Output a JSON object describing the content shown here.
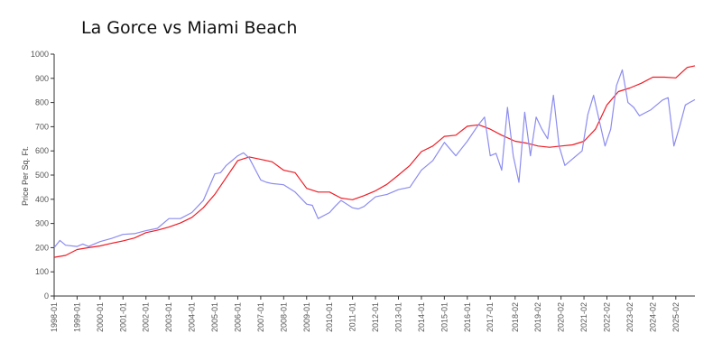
{
  "chart_data": {
    "type": "line",
    "title": "La Gorce vs Miami Beach",
    "ylabel": "Price Per Sq. Ft.",
    "xlabel": "",
    "ylim": [
      0,
      1000
    ],
    "yticks": [
      0,
      100,
      200,
      300,
      400,
      500,
      600,
      700,
      800,
      900,
      1000
    ],
    "xlim": [
      "1998-01",
      "2025-12"
    ],
    "xtick_labels": [
      "1998-01",
      "1999-01",
      "2000-01",
      "2001-01",
      "2002-01",
      "2003-01",
      "2004-01",
      "2005-01",
      "2006-01",
      "2007-01",
      "2008-01",
      "2009-01",
      "2010-01",
      "2011-01",
      "2012-01",
      "2013-01",
      "2014-01",
      "2015-01",
      "2016-01",
      "2017-01",
      "2018-02",
      "2019-02",
      "2020-02",
      "2021-02",
      "2022-02",
      "2023-02",
      "2024-02",
      "2025-02"
    ],
    "grid": false,
    "legend": "none",
    "series": [
      {
        "color": "#ee1c25",
        "points": [
          [
            "1998-01",
            160
          ],
          [
            "1998-07",
            168
          ],
          [
            "1999-01",
            192
          ],
          [
            "1999-07",
            200
          ],
          [
            "2000-01",
            207
          ],
          [
            "2000-07",
            218
          ],
          [
            "2001-01",
            228
          ],
          [
            "2001-07",
            240
          ],
          [
            "2002-01",
            262
          ],
          [
            "2002-07",
            272
          ],
          [
            "2003-01",
            285
          ],
          [
            "2003-07",
            302
          ],
          [
            "2004-01",
            325
          ],
          [
            "2004-07",
            365
          ],
          [
            "2005-01",
            420
          ],
          [
            "2005-07",
            490
          ],
          [
            "2006-01",
            560
          ],
          [
            "2006-07",
            575
          ],
          [
            "2007-01",
            565
          ],
          [
            "2007-07",
            555
          ],
          [
            "2008-01",
            520
          ],
          [
            "2008-07",
            510
          ],
          [
            "2009-01",
            445
          ],
          [
            "2009-07",
            430
          ],
          [
            "2010-01",
            430
          ],
          [
            "2010-07",
            405
          ],
          [
            "2011-01",
            398
          ],
          [
            "2011-07",
            415
          ],
          [
            "2012-01",
            435
          ],
          [
            "2012-07",
            462
          ],
          [
            "2013-01",
            500
          ],
          [
            "2013-07",
            540
          ],
          [
            "2014-01",
            597
          ],
          [
            "2014-07",
            620
          ],
          [
            "2015-01",
            660
          ],
          [
            "2015-07",
            665
          ],
          [
            "2016-01",
            702
          ],
          [
            "2016-07",
            708
          ],
          [
            "2017-01",
            690
          ],
          [
            "2017-07",
            665
          ],
          [
            "2018-02",
            640
          ],
          [
            "2018-08",
            632
          ],
          [
            "2019-02",
            620
          ],
          [
            "2019-08",
            615
          ],
          [
            "2020-02",
            620
          ],
          [
            "2020-08",
            625
          ],
          [
            "2021-02",
            640
          ],
          [
            "2021-08",
            690
          ],
          [
            "2022-02",
            790
          ],
          [
            "2022-08",
            845
          ],
          [
            "2023-02",
            860
          ],
          [
            "2023-08",
            880
          ],
          [
            "2024-02",
            905
          ],
          [
            "2024-08",
            905
          ],
          [
            "2025-02",
            902
          ],
          [
            "2025-08",
            945
          ],
          [
            "2025-12",
            952
          ]
        ]
      },
      {
        "color": "#8c8cf0",
        "points": [
          [
            "1998-01",
            200
          ],
          [
            "1998-04",
            230
          ],
          [
            "1998-07",
            210
          ],
          [
            "1999-01",
            205
          ],
          [
            "1999-04",
            215
          ],
          [
            "1999-07",
            205
          ],
          [
            "2000-01",
            225
          ],
          [
            "2000-07",
            238
          ],
          [
            "2001-01",
            255
          ],
          [
            "2001-07",
            258
          ],
          [
            "2002-01",
            270
          ],
          [
            "2002-07",
            280
          ],
          [
            "2003-01",
            320
          ],
          [
            "2003-07",
            320
          ],
          [
            "2004-01",
            345
          ],
          [
            "2004-07",
            395
          ],
          [
            "2005-01",
            505
          ],
          [
            "2005-04",
            510
          ],
          [
            "2005-07",
            540
          ],
          [
            "2006-01",
            580
          ],
          [
            "2006-04",
            592
          ],
          [
            "2006-07",
            570
          ],
          [
            "2007-01",
            480
          ],
          [
            "2007-04",
            470
          ],
          [
            "2007-07",
            465
          ],
          [
            "2008-01",
            460
          ],
          [
            "2008-07",
            430
          ],
          [
            "2009-01",
            380
          ],
          [
            "2009-04",
            375
          ],
          [
            "2009-07",
            320
          ],
          [
            "2010-01",
            345
          ],
          [
            "2010-04",
            372
          ],
          [
            "2010-07",
            395
          ],
          [
            "2011-01",
            365
          ],
          [
            "2011-04",
            360
          ],
          [
            "2011-07",
            370
          ],
          [
            "2012-01",
            410
          ],
          [
            "2012-07",
            420
          ],
          [
            "2013-01",
            440
          ],
          [
            "2013-07",
            450
          ],
          [
            "2014-01",
            520
          ],
          [
            "2014-07",
            560
          ],
          [
            "2015-01",
            635
          ],
          [
            "2015-07",
            580
          ],
          [
            "2016-01",
            640
          ],
          [
            "2016-07",
            710
          ],
          [
            "2016-10",
            740
          ],
          [
            "2017-01",
            580
          ],
          [
            "2017-04",
            590
          ],
          [
            "2017-07",
            520
          ],
          [
            "2017-10",
            780
          ],
          [
            "2018-01",
            580
          ],
          [
            "2018-04",
            470
          ],
          [
            "2018-07",
            760
          ],
          [
            "2018-10",
            580
          ],
          [
            "2019-01",
            740
          ],
          [
            "2019-04",
            690
          ],
          [
            "2019-07",
            650
          ],
          [
            "2019-10",
            830
          ],
          [
            "2020-01",
            620
          ],
          [
            "2020-04",
            540
          ],
          [
            "2020-07",
            560
          ],
          [
            "2021-01",
            600
          ],
          [
            "2021-04",
            750
          ],
          [
            "2021-07",
            830
          ],
          [
            "2022-01",
            620
          ],
          [
            "2022-04",
            690
          ],
          [
            "2022-07",
            870
          ],
          [
            "2022-10",
            935
          ],
          [
            "2023-01",
            800
          ],
          [
            "2023-04",
            780
          ],
          [
            "2023-07",
            745
          ],
          [
            "2024-01",
            770
          ],
          [
            "2024-07",
            810
          ],
          [
            "2024-10",
            820
          ],
          [
            "2025-01",
            620
          ],
          [
            "2025-04",
            700
          ],
          [
            "2025-07",
            790
          ],
          [
            "2025-12",
            812
          ]
        ]
      }
    ]
  }
}
